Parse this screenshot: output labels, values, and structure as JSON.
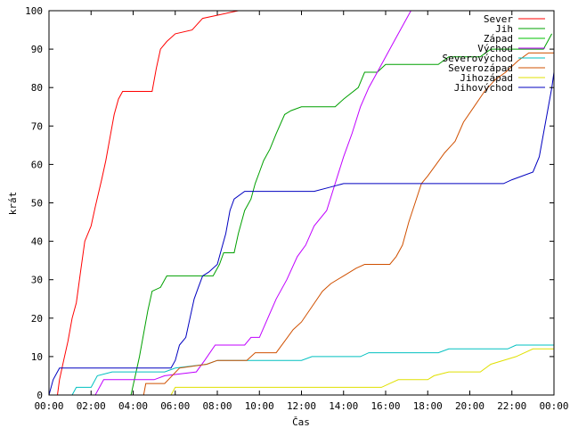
{
  "chart_data": {
    "type": "line",
    "xlabel": "Čas",
    "ylabel": "krát",
    "xlim": [
      0,
      24
    ],
    "ylim": [
      0,
      100
    ],
    "grid": false,
    "legend_position": "top-right",
    "x_ticks": [
      {
        "v": 0,
        "label": "00:00"
      },
      {
        "v": 2,
        "label": "02:00"
      },
      {
        "v": 4,
        "label": "04:00"
      },
      {
        "v": 6,
        "label": "06:00"
      },
      {
        "v": 8,
        "label": "08:00"
      },
      {
        "v": 10,
        "label": "10:00"
      },
      {
        "v": 12,
        "label": "12:00"
      },
      {
        "v": 14,
        "label": "14:00"
      },
      {
        "v": 16,
        "label": "16:00"
      },
      {
        "v": 18,
        "label": "18:00"
      },
      {
        "v": 20,
        "label": "20:00"
      },
      {
        "v": 22,
        "label": "22:00"
      },
      {
        "v": 24,
        "label": "00:00"
      }
    ],
    "y_ticks": [
      {
        "v": 0,
        "label": "0"
      },
      {
        "v": 10,
        "label": "10"
      },
      {
        "v": 20,
        "label": "20"
      },
      {
        "v": 30,
        "label": "30"
      },
      {
        "v": 40,
        "label": "40"
      },
      {
        "v": 50,
        "label": "50"
      },
      {
        "v": 60,
        "label": "60"
      },
      {
        "v": 70,
        "label": "70"
      },
      {
        "v": 80,
        "label": "80"
      },
      {
        "v": 90,
        "label": "90"
      },
      {
        "v": 100,
        "label": "100"
      }
    ],
    "series": [
      {
        "name": "Sever",
        "color": "#ff0000",
        "points": [
          [
            0.4,
            0
          ],
          [
            0.5,
            4
          ],
          [
            0.7,
            9
          ],
          [
            0.9,
            14
          ],
          [
            1.1,
            20
          ],
          [
            1.3,
            24
          ],
          [
            1.5,
            32
          ],
          [
            1.7,
            40
          ],
          [
            2.0,
            44
          ],
          [
            2.2,
            49
          ],
          [
            2.5,
            56
          ],
          [
            2.7,
            61
          ],
          [
            2.9,
            67
          ],
          [
            3.1,
            73
          ],
          [
            3.3,
            77
          ],
          [
            3.5,
            79
          ],
          [
            4.9,
            79
          ],
          [
            5.1,
            85
          ],
          [
            5.3,
            90
          ],
          [
            5.6,
            92
          ],
          [
            6.0,
            94
          ],
          [
            6.8,
            95
          ],
          [
            7.3,
            98
          ],
          [
            9.0,
            100
          ]
        ]
      },
      {
        "name": "Jih",
        "color": "#00a000",
        "points": [
          [
            3.9,
            0
          ],
          [
            4.1,
            5
          ],
          [
            4.3,
            10
          ],
          [
            4.5,
            16
          ],
          [
            4.7,
            22
          ],
          [
            4.9,
            27
          ],
          [
            5.3,
            28
          ],
          [
            5.6,
            31
          ],
          [
            7.8,
            31
          ],
          [
            8.1,
            34
          ],
          [
            8.3,
            37
          ],
          [
            8.8,
            37
          ],
          [
            9.0,
            42
          ],
          [
            9.3,
            48
          ],
          [
            9.6,
            51
          ],
          [
            9.8,
            55
          ],
          [
            10.0,
            58
          ],
          [
            10.2,
            61
          ],
          [
            10.5,
            64
          ],
          [
            10.8,
            68
          ],
          [
            11.2,
            73
          ],
          [
            11.5,
            74
          ],
          [
            12.0,
            75
          ],
          [
            13.6,
            75
          ],
          [
            14.0,
            77
          ],
          [
            14.7,
            80
          ],
          [
            15.0,
            84
          ],
          [
            15.6,
            84
          ],
          [
            16.0,
            86
          ],
          [
            18.5,
            86
          ],
          [
            19.0,
            88
          ],
          [
            20.5,
            88
          ],
          [
            21.0,
            90
          ],
          [
            23.5,
            90
          ],
          [
            23.9,
            94
          ]
        ]
      },
      {
        "name": "Západ",
        "color": "#00c000",
        "points": []
      },
      {
        "name": "Východ",
        "color": "#c000ff",
        "points": [
          [
            2.2,
            0
          ],
          [
            2.6,
            4
          ],
          [
            5.0,
            4
          ],
          [
            5.5,
            5
          ],
          [
            7.0,
            6
          ],
          [
            7.4,
            9
          ],
          [
            7.9,
            13
          ],
          [
            9.3,
            13
          ],
          [
            9.6,
            15
          ],
          [
            10.0,
            15
          ],
          [
            10.4,
            20
          ],
          [
            10.8,
            25
          ],
          [
            11.3,
            30
          ],
          [
            11.8,
            36
          ],
          [
            12.2,
            39
          ],
          [
            12.6,
            44
          ],
          [
            13.2,
            48
          ],
          [
            13.6,
            55
          ],
          [
            14.0,
            62
          ],
          [
            14.4,
            68
          ],
          [
            14.8,
            75
          ],
          [
            15.2,
            80
          ],
          [
            15.6,
            84
          ],
          [
            16.0,
            88
          ],
          [
            16.4,
            92
          ],
          [
            16.8,
            96
          ],
          [
            17.2,
            100
          ]
        ]
      },
      {
        "name": "Severovýchod",
        "color": "#00c0c0",
        "points": [
          [
            1.1,
            0
          ],
          [
            1.3,
            2
          ],
          [
            2.0,
            2
          ],
          [
            2.3,
            5
          ],
          [
            3.0,
            6
          ],
          [
            5.5,
            6
          ],
          [
            6.0,
            7
          ],
          [
            7.5,
            8
          ],
          [
            8.0,
            9
          ],
          [
            12.0,
            9
          ],
          [
            12.5,
            10
          ],
          [
            14.8,
            10
          ],
          [
            15.2,
            11
          ],
          [
            18.5,
            11
          ],
          [
            19.0,
            12
          ],
          [
            21.8,
            12
          ],
          [
            22.2,
            13
          ],
          [
            24.0,
            13
          ]
        ]
      },
      {
        "name": "Severozápad",
        "color": "#d05000",
        "points": [
          [
            4.5,
            0
          ],
          [
            4.6,
            3
          ],
          [
            5.5,
            3
          ],
          [
            6.2,
            7
          ],
          [
            7.5,
            8
          ],
          [
            8.0,
            9
          ],
          [
            9.4,
            9
          ],
          [
            9.8,
            11
          ],
          [
            10.8,
            11
          ],
          [
            11.2,
            14
          ],
          [
            11.6,
            17
          ],
          [
            12.0,
            19
          ],
          [
            12.5,
            23
          ],
          [
            13.0,
            27
          ],
          [
            13.4,
            29
          ],
          [
            14.0,
            31
          ],
          [
            14.6,
            33
          ],
          [
            15.0,
            34
          ],
          [
            16.2,
            34
          ],
          [
            16.5,
            36
          ],
          [
            16.8,
            39
          ],
          [
            17.1,
            45
          ],
          [
            17.4,
            50
          ],
          [
            17.7,
            55
          ],
          [
            18.0,
            57
          ],
          [
            18.4,
            60
          ],
          [
            18.8,
            63
          ],
          [
            19.3,
            66
          ],
          [
            19.7,
            71
          ],
          [
            20.2,
            75
          ],
          [
            20.7,
            79
          ],
          [
            21.2,
            82
          ],
          [
            21.7,
            84
          ],
          [
            22.3,
            87
          ],
          [
            22.8,
            89
          ],
          [
            23.5,
            89
          ],
          [
            24.0,
            89
          ]
        ]
      },
      {
        "name": "Jihozápad",
        "color": "#e0e000",
        "points": [
          [
            5.8,
            0
          ],
          [
            6.0,
            2
          ],
          [
            15.8,
            2
          ],
          [
            16.2,
            3
          ],
          [
            16.6,
            4
          ],
          [
            17.2,
            4
          ],
          [
            18.0,
            4
          ],
          [
            18.3,
            5
          ],
          [
            19.0,
            6
          ],
          [
            20.5,
            6
          ],
          [
            21.0,
            8
          ],
          [
            22.2,
            10
          ],
          [
            23.0,
            12
          ],
          [
            24.0,
            12
          ]
        ]
      },
      {
        "name": "Jihovýchod",
        "color": "#0000c0",
        "points": [
          [
            0.0,
            0
          ],
          [
            0.2,
            4
          ],
          [
            0.5,
            7
          ],
          [
            5.8,
            7
          ],
          [
            6.0,
            9
          ],
          [
            6.2,
            13
          ],
          [
            6.5,
            15
          ],
          [
            6.7,
            20
          ],
          [
            6.9,
            25
          ],
          [
            7.1,
            28
          ],
          [
            7.3,
            31
          ],
          [
            7.6,
            32
          ],
          [
            8.0,
            34
          ],
          [
            8.2,
            38
          ],
          [
            8.4,
            42
          ],
          [
            8.6,
            48
          ],
          [
            8.8,
            51
          ],
          [
            9.3,
            53
          ],
          [
            12.6,
            53
          ],
          [
            13.3,
            54
          ],
          [
            14.0,
            55
          ],
          [
            21.6,
            55
          ],
          [
            22.0,
            56
          ],
          [
            23.0,
            58
          ],
          [
            23.3,
            62
          ],
          [
            23.5,
            68
          ],
          [
            23.7,
            74
          ],
          [
            23.9,
            80
          ],
          [
            24.0,
            84
          ]
        ]
      }
    ]
  }
}
